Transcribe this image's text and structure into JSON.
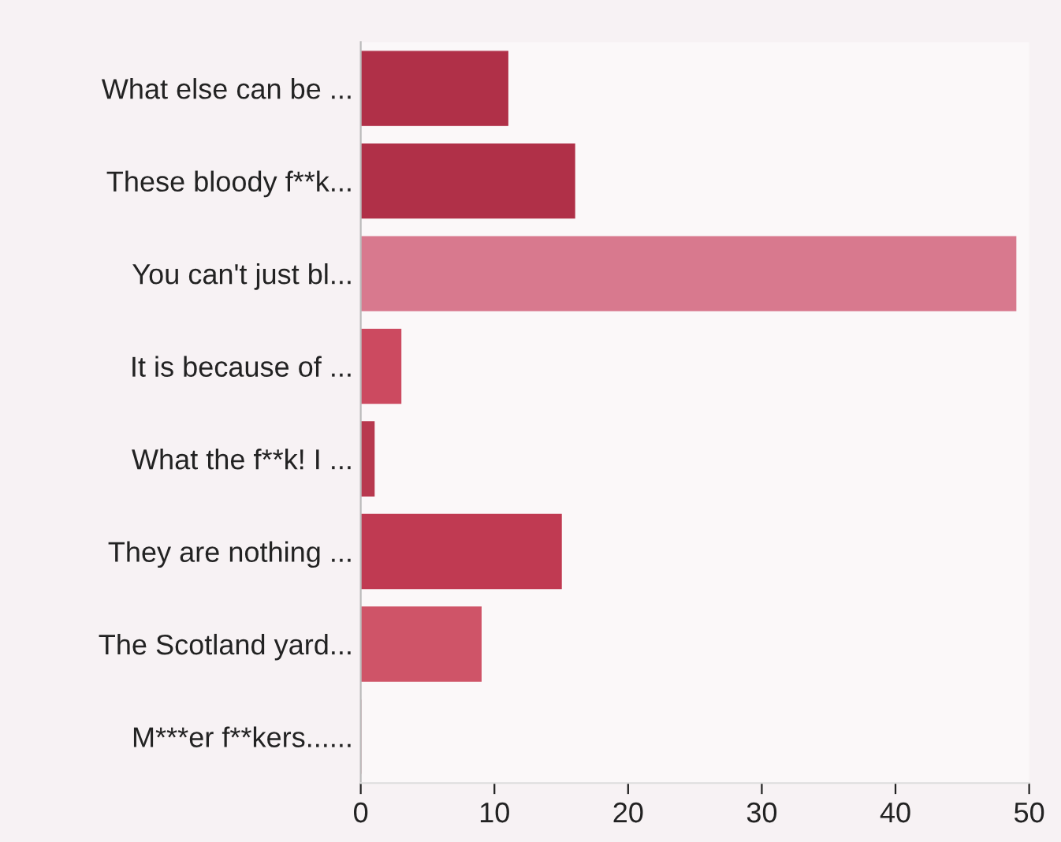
{
  "chart_data": {
    "type": "bar",
    "orientation": "horizontal",
    "categories": [
      "What else can be ...",
      "These bloody f**k...",
      "You can't just bl...",
      "It is because of ...",
      "What the f**k! I ...",
      "They are nothing ...",
      "The Scotland yard...",
      "M***er f**kers......"
    ],
    "values": [
      11,
      16,
      49,
      3,
      1,
      15,
      9,
      0
    ],
    "colors": [
      "#b03048",
      "#b03048",
      "#d8798e",
      "#cc4a60",
      "#b8394f",
      "#c03a52",
      "#cf5468",
      "#b03048"
    ],
    "xlim": [
      0,
      50
    ],
    "xticks": [
      0,
      10,
      20,
      30,
      40,
      50
    ],
    "grid": false,
    "legend": false
  }
}
